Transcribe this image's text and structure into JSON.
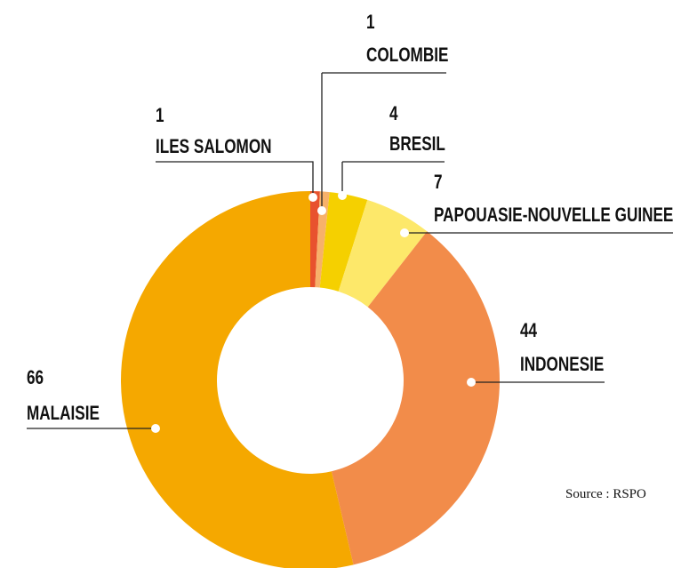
{
  "chart_data": {
    "type": "donut",
    "categories": [
      "ILES SALOMON",
      "COLOMBIE",
      "BRESIL",
      "PAPOUASIE-NOUVELLE GUINEE",
      "INDONESIE",
      "MALAISIE"
    ],
    "values": [
      1,
      1,
      4,
      7,
      44,
      66
    ],
    "colors": [
      "#e8522e",
      "#f7b16a",
      "#f5d000",
      "#fde86a",
      "#f28c4a",
      "#f5a800"
    ],
    "source": "Source : RSPO"
  }
}
